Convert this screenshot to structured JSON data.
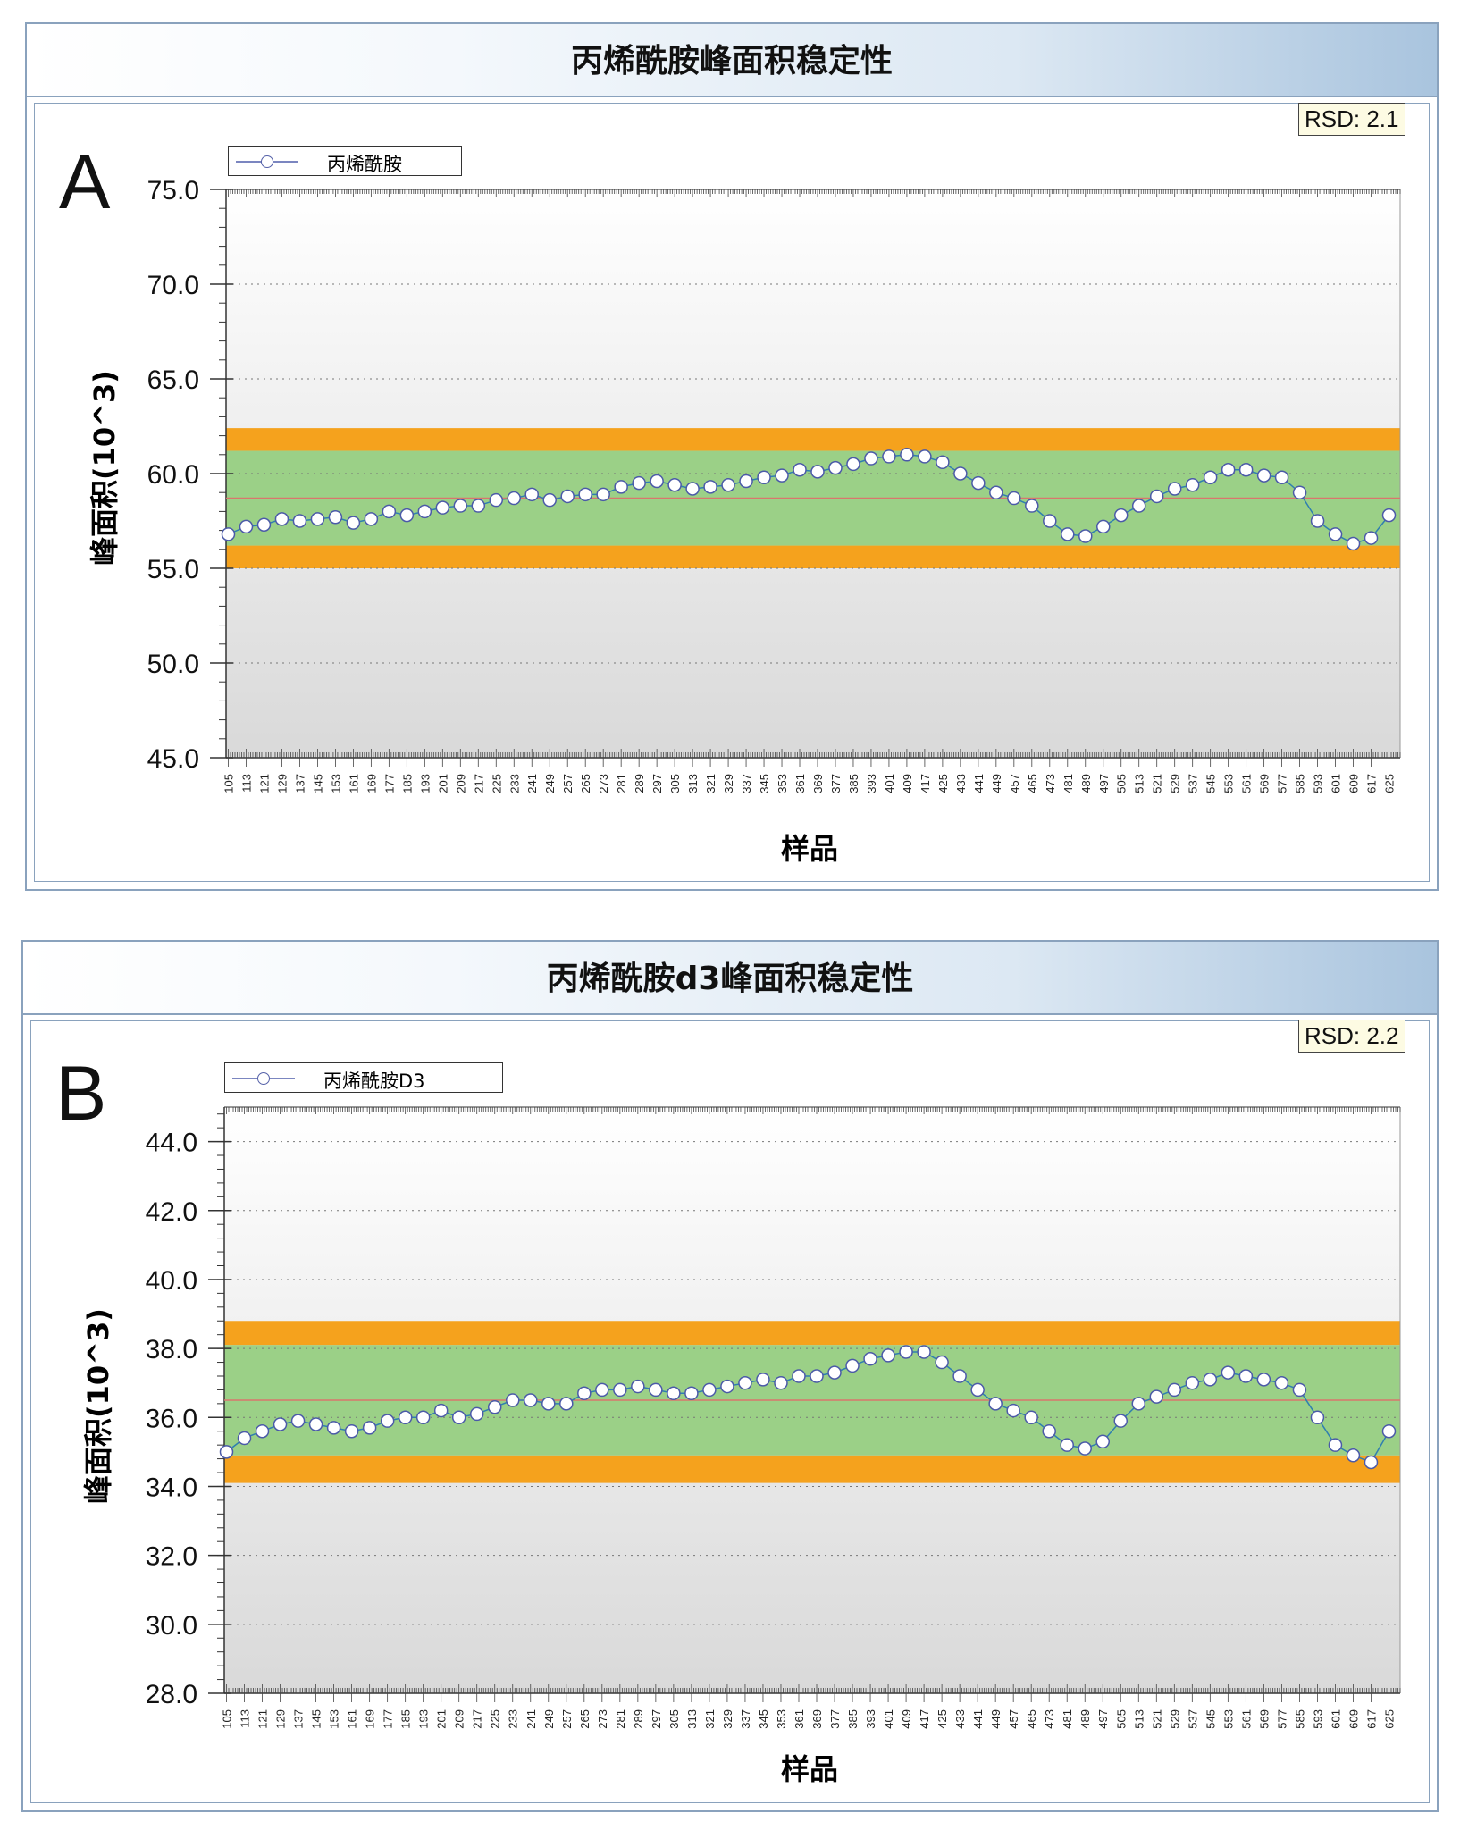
{
  "chart_data": [
    {
      "type": "scatter",
      "title": "丙烯酰胺峰面积稳定性",
      "panel_letter": "A",
      "rsd_label": "RSD: 2.1",
      "legend": [
        "丙烯酰胺"
      ],
      "legend_placement": "top-left",
      "xlabel": "样品",
      "ylabel": "峰面积(10^3)",
      "ylim": [
        45,
        75
      ],
      "yticks": [
        "45.0",
        "50.0",
        "55.0",
        "60.0",
        "65.0",
        "70.0",
        "75.0"
      ],
      "ytick_values": [
        45,
        50,
        55,
        60,
        65,
        70,
        75
      ],
      "minor_step": 1,
      "grid": true,
      "xticks": [
        "105",
        "113",
        "121",
        "129",
        "137",
        "145",
        "153",
        "161",
        "169",
        "177",
        "185",
        "193",
        "201",
        "209",
        "217",
        "225",
        "233",
        "241",
        "249",
        "257",
        "265",
        "273",
        "281",
        "289",
        "297",
        "305",
        "313",
        "321",
        "329",
        "337",
        "345",
        "353",
        "361",
        "369",
        "377",
        "385",
        "393",
        "401",
        "409",
        "417",
        "425",
        "433",
        "441",
        "449",
        "457",
        "465",
        "473",
        "481",
        "489",
        "497",
        "505",
        "513",
        "521",
        "529",
        "537",
        "545",
        "553",
        "561",
        "569",
        "577",
        "585",
        "593",
        "601",
        "609",
        "617",
        "625"
      ],
      "xlim": [
        104,
        630
      ],
      "mean": 58.7,
      "green_band": [
        56.2,
        61.2
      ],
      "orange_bands": [
        [
          55.0,
          56.2
        ],
        [
          61.2,
          62.4
        ]
      ],
      "colors": {
        "green": "#9bd087",
        "orange": "#f5a21d",
        "mean": "#d9766d",
        "marker": "#4b5aa8",
        "line": "#2f7fb0"
      },
      "series": [
        {
          "name": "丙烯酰胺",
          "x": [
            105,
            113,
            121,
            129,
            137,
            145,
            153,
            161,
            169,
            177,
            185,
            193,
            201,
            209,
            217,
            225,
            233,
            241,
            249,
            257,
            265,
            273,
            281,
            289,
            297,
            305,
            313,
            321,
            329,
            337,
            345,
            353,
            361,
            369,
            377,
            385,
            393,
            401,
            409,
            417,
            425,
            433,
            441,
            449,
            457,
            465,
            473,
            481,
            489,
            497,
            505,
            513,
            521,
            529,
            537,
            545,
            553,
            561,
            569,
            577,
            585,
            593,
            601,
            609,
            617,
            625
          ],
          "values": [
            56.8,
            57.2,
            57.3,
            57.6,
            57.5,
            57.6,
            57.7,
            57.4,
            57.6,
            58.0,
            57.8,
            58.0,
            58.2,
            58.3,
            58.3,
            58.6,
            58.7,
            58.9,
            58.6,
            58.8,
            58.9,
            58.9,
            59.3,
            59.5,
            59.6,
            59.4,
            59.2,
            59.3,
            59.4,
            59.6,
            59.8,
            59.9,
            60.2,
            60.1,
            60.3,
            60.5,
            60.8,
            60.9,
            61.0,
            60.9,
            60.6,
            60.0,
            59.5,
            59.0,
            58.7,
            58.3,
            57.5,
            56.8,
            56.7,
            57.2,
            57.8,
            58.3,
            58.8,
            59.2,
            59.4,
            59.8,
            60.2,
            60.2,
            59.9,
            59.8,
            59.0,
            57.5,
            56.8,
            56.3,
            56.6,
            57.8
          ]
        }
      ]
    },
    {
      "type": "scatter",
      "title": "丙烯酰胺d3峰面积稳定性",
      "panel_letter": "B",
      "rsd_label": "RSD: 2.2",
      "legend": [
        "丙烯酰胺D3"
      ],
      "legend_placement": "top-left",
      "xlabel": "样品",
      "ylabel": "峰面积(10^3)",
      "ylim": [
        28,
        45
      ],
      "yticks": [
        "28.0",
        "30.0",
        "32.0",
        "34.0",
        "36.0",
        "38.0",
        "40.0",
        "42.0",
        "44.0"
      ],
      "ytick_values": [
        28,
        30,
        32,
        34,
        36,
        38,
        40,
        42,
        44
      ],
      "minor_step": 0.4,
      "grid": true,
      "xticks": [
        "105",
        "113",
        "121",
        "129",
        "137",
        "145",
        "153",
        "161",
        "169",
        "177",
        "185",
        "193",
        "201",
        "209",
        "217",
        "225",
        "233",
        "241",
        "249",
        "257",
        "265",
        "273",
        "281",
        "289",
        "297",
        "305",
        "313",
        "321",
        "329",
        "337",
        "345",
        "353",
        "361",
        "369",
        "377",
        "385",
        "393",
        "401",
        "409",
        "417",
        "425",
        "433",
        "441",
        "449",
        "457",
        "465",
        "473",
        "481",
        "489",
        "497",
        "505",
        "513",
        "521",
        "529",
        "537",
        "545",
        "553",
        "561",
        "569",
        "577",
        "585",
        "593",
        "601",
        "609",
        "617",
        "625"
      ],
      "xlim": [
        104,
        630
      ],
      "mean": 36.5,
      "green_band": [
        34.9,
        38.1
      ],
      "orange_bands": [
        [
          34.1,
          34.9
        ],
        [
          38.1,
          38.8
        ]
      ],
      "colors": {
        "green": "#9bd087",
        "orange": "#f5a21d",
        "mean": "#d9766d",
        "marker": "#4b5aa8",
        "line": "#2f7fb0"
      },
      "series": [
        {
          "name": "丙烯酰胺D3",
          "x": [
            105,
            113,
            121,
            129,
            137,
            145,
            153,
            161,
            169,
            177,
            185,
            193,
            201,
            209,
            217,
            225,
            233,
            241,
            249,
            257,
            265,
            273,
            281,
            289,
            297,
            305,
            313,
            321,
            329,
            337,
            345,
            353,
            361,
            369,
            377,
            385,
            393,
            401,
            409,
            417,
            425,
            433,
            441,
            449,
            457,
            465,
            473,
            481,
            489,
            497,
            505,
            513,
            521,
            529,
            537,
            545,
            553,
            561,
            569,
            577,
            585,
            593,
            601,
            609,
            617,
            625
          ],
          "values": [
            35.0,
            35.4,
            35.6,
            35.8,
            35.9,
            35.8,
            35.7,
            35.6,
            35.7,
            35.9,
            36.0,
            36.0,
            36.2,
            36.0,
            36.1,
            36.3,
            36.5,
            36.5,
            36.4,
            36.4,
            36.7,
            36.8,
            36.8,
            36.9,
            36.8,
            36.7,
            36.7,
            36.8,
            36.9,
            37.0,
            37.1,
            37.0,
            37.2,
            37.2,
            37.3,
            37.5,
            37.7,
            37.8,
            37.9,
            37.9,
            37.6,
            37.2,
            36.8,
            36.4,
            36.2,
            36.0,
            35.6,
            35.2,
            35.1,
            35.3,
            35.9,
            36.4,
            36.6,
            36.8,
            37.0,
            37.1,
            37.3,
            37.2,
            37.1,
            37.0,
            36.8,
            36.0,
            35.2,
            34.9,
            34.7,
            35.6
          ]
        }
      ]
    }
  ]
}
